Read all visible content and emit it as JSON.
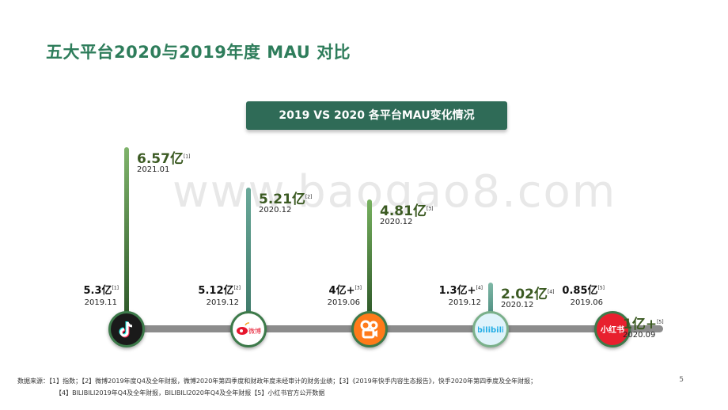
{
  "title": "五大平台2020与2019年度 MAU 对比",
  "chart_data": {
    "type": "bar",
    "title": "2019 VS 2020 各平台MAU变化情况",
    "watermark": "www.baogao8.com",
    "platforms": [
      {
        "icon": "douyin-icon",
        "old_value": 5.3,
        "old_label": "5.3亿",
        "old_ref": "[1]",
        "old_date": "2019.11",
        "new_value": 6.57,
        "new_label": "6.57亿",
        "new_ref": "[1]",
        "new_date": "2021.01"
      },
      {
        "icon": "weibo-icon",
        "old_value": 5.12,
        "old_label": "5.12亿",
        "old_ref": "[2]",
        "old_date": "2019.12",
        "new_value": 5.21,
        "new_label": "5.21亿",
        "new_ref": "[2]",
        "new_date": "2020.12"
      },
      {
        "icon": "kuaishou-icon",
        "old_value": 4,
        "old_label": "4亿+",
        "old_ref": "[3]",
        "old_date": "2019.06",
        "new_value": 4.81,
        "new_label": "4.81亿",
        "new_ref": "[3]",
        "new_date": "2020.12"
      },
      {
        "icon": "bilibili-icon",
        "old_value": 1.3,
        "old_label": "1.3亿+",
        "old_ref": "[4]",
        "old_date": "2019.12",
        "new_value": 2.02,
        "new_label": "2.02亿",
        "new_ref": "[4]",
        "new_date": "2020.12"
      },
      {
        "icon": "xiaohongshu-icon",
        "old_value": 0.85,
        "old_label": "0.85亿",
        "old_ref": "[5]",
        "old_date": "2019.06",
        "new_value": 1,
        "new_label": "1亿+",
        "new_ref": "[5]",
        "new_date": "2020.09"
      }
    ]
  },
  "icons": {
    "bilibili_text": "bilibili",
    "xiaohongshu_text": "小红书",
    "weibo_text": "微博"
  },
  "source_note": {
    "line1": "数据来源：【1】指数；【2】微博2019年度Q4及全年财报，微博2020年第四季度和财政年度未经审计的财务业绩；【3】《2019年快手内容生态报告》，快手2020年第四季度及全年财报；",
    "line2": "【4】BILIBILI2019年Q4及全年财报，BILIBILI2020年Q4及全年财报【5】小红书官方公开数据"
  },
  "page_number": "5",
  "colors": {
    "title": "#2e7d5b",
    "banner": "#2f6b57",
    "new_value": "#3b5a22",
    "timeline": "#8c8c8c"
  }
}
